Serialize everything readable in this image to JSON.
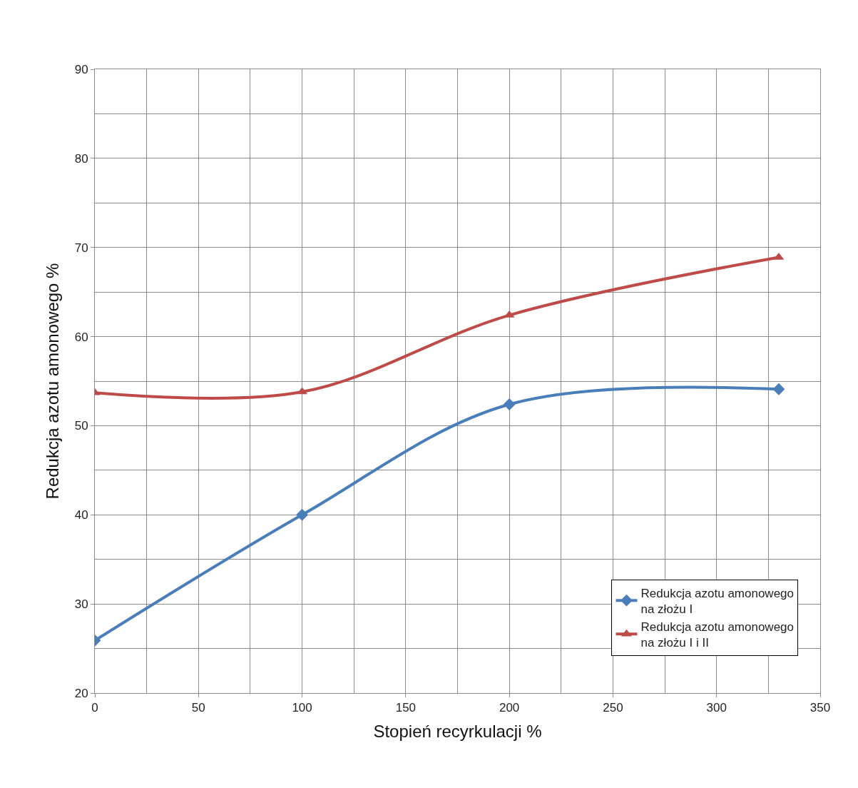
{
  "chart_data": {
    "type": "line",
    "xlabel": "Stopień recyrkulacji %",
    "ylabel": "Redukcja azotu amonowego %",
    "x": [
      0,
      100,
      200,
      330
    ],
    "series": [
      {
        "name": "Redukcja azotu amonowego\nna złożu I",
        "color": "#4a7ebb",
        "marker": "diamond",
        "values": [
          25.9,
          40,
          52.4,
          54.1
        ]
      },
      {
        "name": "Redukcja azotu amonowego\nna złożu I i II",
        "color": "#be4b48",
        "marker": "triangle",
        "values": [
          53.7,
          53.8,
          62.4,
          68.9
        ]
      }
    ],
    "xlim": [
      0,
      350
    ],
    "xticks": [
      0,
      50,
      100,
      150,
      200,
      250,
      300,
      350
    ],
    "ylim": [
      20,
      90
    ],
    "yticks": [
      20,
      30,
      40,
      50,
      60,
      70,
      80,
      90
    ],
    "grid": true,
    "legend": "bottom right",
    "line_style": "solid"
  }
}
